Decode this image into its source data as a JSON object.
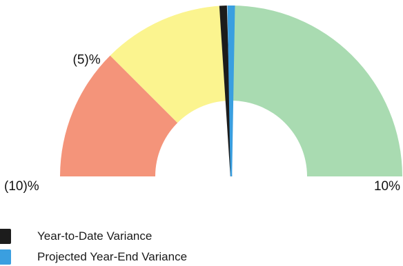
{
  "chart_data": {
    "type": "gauge",
    "title": "",
    "range": [
      -10,
      10
    ],
    "bands": [
      {
        "from": -10,
        "to": -5,
        "color": "#f4947a"
      },
      {
        "from": -5,
        "to": -0.3,
        "color": "#fbf48f"
      },
      {
        "from": 0,
        "to": 10,
        "color": "#a9dbb1"
      }
    ],
    "tick_labels": [
      {
        "value": -10,
        "label": "(10)%"
      },
      {
        "value": -5,
        "label": "(5)%"
      },
      {
        "value": 10,
        "label": "10%"
      }
    ],
    "series": [
      {
        "name": "Year-to-Date Variance",
        "value": -0.3,
        "color": "#1c1c1c"
      },
      {
        "name": "Projected Year-End Variance",
        "value": 0,
        "color": "#3a9fe0"
      }
    ]
  },
  "legend": {
    "items": [
      {
        "label": "Year-to-Date Variance",
        "color": "#1c1c1c"
      },
      {
        "label": "Projected Year-End Variance",
        "color": "#3a9fe0"
      }
    ]
  }
}
